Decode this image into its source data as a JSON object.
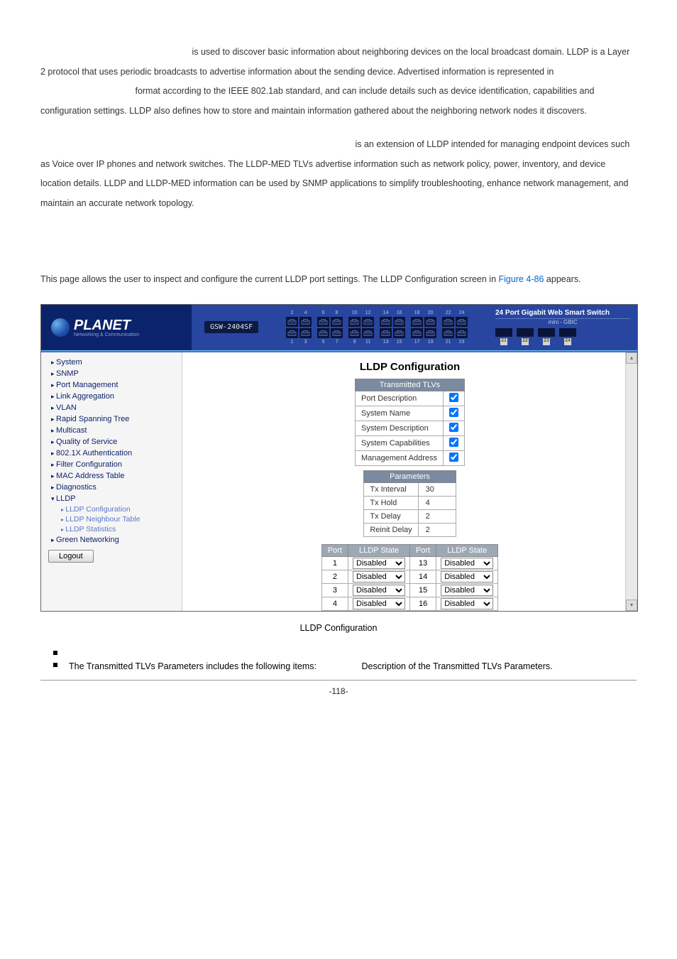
{
  "top_paragraph": " is used to discover basic information about neighboring devices on the local broadcast domain. LLDP is a Layer 2 protocol that uses periodic broadcasts to advertise information about the sending device. Advertised information is represented in ",
  "top_paragraph_mid": " format according to the IEEE 802.1ab standard, and can include details such as device identification, capabilities and configuration settings. LLDP also defines how to store and maintain information gathered about the neighboring network nodes it discovers.",
  "mid_paragraph_lead": " is an extension of LLDP intended for managing endpoint devices such as Voice over IP phones and network switches. The LLDP-MED TLVs advertise information such as network policy, power, inventory, and device location details. LLDP and LLDP-MED information can be used by SNMP applications to simplify troubleshooting, enhance network management, and maintain an accurate network topology.",
  "config_intro_a": "This page allows the user to inspect and configure the current LLDP port settings. The LLDP Configuration screen in ",
  "config_intro_link": "Figure 4-86",
  "config_intro_b": " appears.",
  "caption": "LLDP Configuration",
  "bullet_text": "The Transmitted TLVs Parameters includes the following items:",
  "bullet_desc": "Description of the Transmitted TLVs Parameters.",
  "footer": "-118-",
  "screenshot": {
    "model": "GSW-2404SF",
    "logo_main": "PLANET",
    "logo_sub": "Networking & Communication",
    "switch_label": "24 Port Gigabit Web Smart Switch",
    "gbic_label": "mini - GBIC",
    "top_ports": [
      "2",
      "4",
      "6",
      "8",
      "10",
      "12",
      "14",
      "16",
      "18",
      "20",
      "22",
      "24"
    ],
    "bot_ports": [
      "1",
      "3",
      "5",
      "7",
      "9",
      "11",
      "13",
      "15",
      "17",
      "19",
      "21",
      "23"
    ],
    "gbic_nums": [
      "21",
      "22",
      "23",
      "24"
    ],
    "nav": {
      "items": [
        "System",
        "SNMP",
        "Port Management",
        "Link Aggregation",
        "VLAN",
        "Rapid Spanning Tree",
        "Multicast",
        "Quality of Service",
        "802.1X Authentication",
        "Filter Configuration",
        "MAC Address Table",
        "Diagnostics",
        "LLDP"
      ],
      "lldp_sub": [
        "LLDP Configuration",
        "LLDP Neighbour Table",
        "LLDP Statistics"
      ],
      "after": [
        "Green Networking"
      ],
      "logout": "Logout"
    },
    "page_title": "LLDP Configuration",
    "tlv": {
      "header": "Transmitted TLVs",
      "rows": [
        {
          "label": "Port Description",
          "checked": true
        },
        {
          "label": "System Name",
          "checked": true
        },
        {
          "label": "System Description",
          "checked": true
        },
        {
          "label": "System Capabilities",
          "checked": true
        },
        {
          "label": "Management Address",
          "checked": true
        }
      ]
    },
    "params": {
      "header": "Parameters",
      "rows": [
        {
          "label": "Tx Interval",
          "value": "30"
        },
        {
          "label": "Tx Hold",
          "value": "4"
        },
        {
          "label": "Tx Delay",
          "value": "2"
        },
        {
          "label": "Reinit Delay",
          "value": "2"
        }
      ]
    },
    "port_table": {
      "headers": [
        "Port",
        "LLDP State",
        "Port",
        "LLDP State"
      ],
      "rows": [
        {
          "p1": "1",
          "s1": "Disabled",
          "p2": "13",
          "s2": "Disabled"
        },
        {
          "p1": "2",
          "s1": "Disabled",
          "p2": "14",
          "s2": "Disabled"
        },
        {
          "p1": "3",
          "s1": "Disabled",
          "p2": "15",
          "s2": "Disabled"
        },
        {
          "p1": "4",
          "s1": "Disabled",
          "p2": "16",
          "s2": "Disabled"
        }
      ]
    }
  }
}
